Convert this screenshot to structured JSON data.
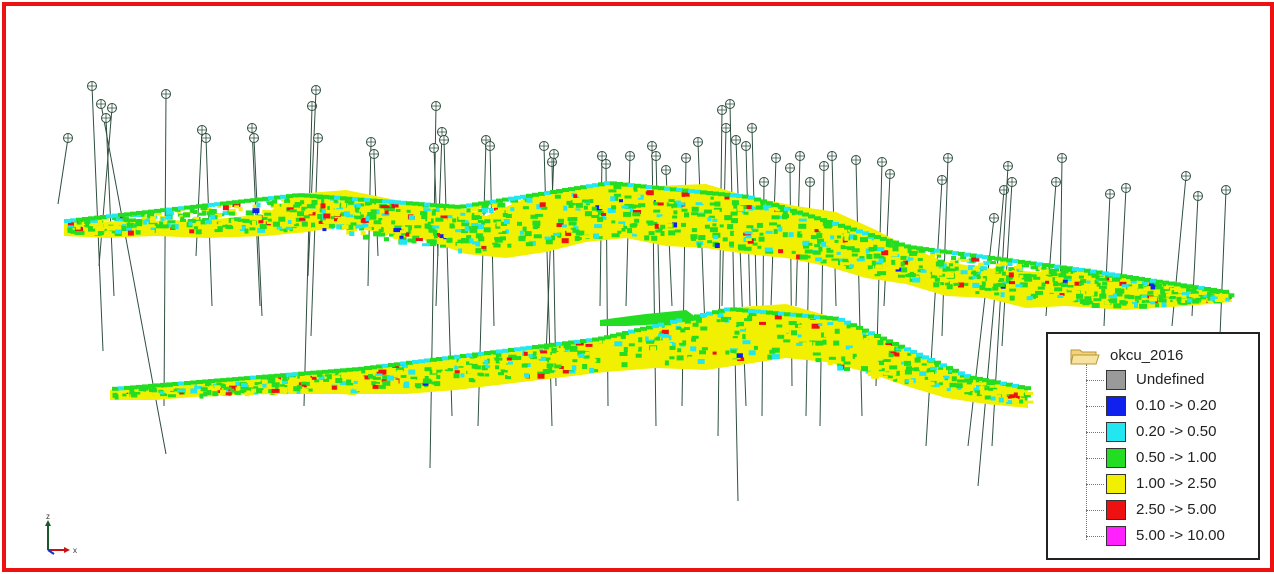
{
  "scene": {
    "frame_color": "#ee1111",
    "background_color": "#ffffff",
    "drillhole_color": "#2f4f3f",
    "axis_labels": {
      "z": "z",
      "x": "x"
    }
  },
  "legend": {
    "folder_label": "okcu_2016",
    "items": [
      {
        "label": "Undefined",
        "color": "#9a9a9a"
      },
      {
        "label": "0.10 -> 0.20",
        "color": "#1020ee"
      },
      {
        "label": "0.20 -> 0.50",
        "color": "#22e6f0"
      },
      {
        "label": "0.50 -> 1.00",
        "color": "#22dd22"
      },
      {
        "label": "1.00 -> 2.50",
        "color": "#f0f000"
      },
      {
        "label": "2.50 -> 5.00",
        "color": "#ee1111"
      },
      {
        "label": "5.00 -> 10.00",
        "color": "#ff22ff"
      }
    ]
  }
}
